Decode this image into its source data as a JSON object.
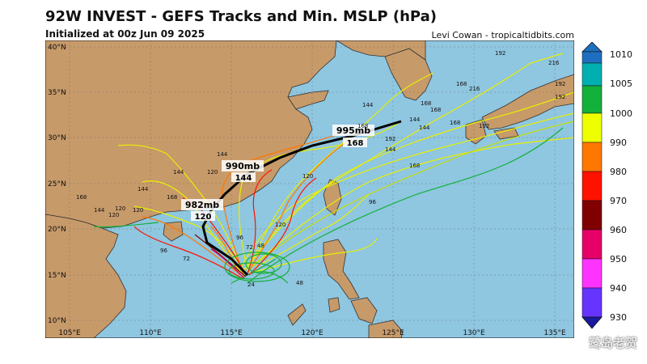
{
  "header": {
    "title": "92W INVEST - GEFS Tracks and Min. MSLP (hPa)",
    "subtitle_left": "Initialized at 00z Jun 09 2025",
    "credit": "Levi Cowan - tropicaltidbits.com"
  },
  "map": {
    "lon_range": [
      103.5,
      136
    ],
    "lat_range": [
      8.5,
      41
    ],
    "lon_ticks": [
      "105°E",
      "110°E",
      "115°E",
      "120°E",
      "125°E",
      "130°E",
      "135°E"
    ],
    "lat_ticks": [
      "10°N",
      "15°N",
      "20°N",
      "25°N",
      "30°N",
      "35°N",
      "40°N"
    ],
    "ocean_color": "#8fc6e0",
    "land_color": "#c79a6a"
  },
  "colorbar": {
    "label_unit": "hPa",
    "ticks": [
      "1010",
      "1005",
      "1000",
      "990",
      "980",
      "970",
      "960",
      "950",
      "940",
      "930"
    ],
    "colors": [
      "#1f6fc0",
      "#00b0b0",
      "#13b03a",
      "#eeff00",
      "#ff7700",
      "#ff1100",
      "#800000",
      "#e60068",
      "#ff33ff",
      "#6633ff"
    ]
  },
  "mean_track": {
    "labels": [
      "995mb",
      "168",
      "990mb",
      "144",
      "982mb",
      "120"
    ]
  },
  "hour_labels": [
    "192",
    "216",
    "192",
    "168",
    "216",
    "192",
    "144",
    "168",
    "168",
    "192",
    "168",
    "144",
    "144",
    "168",
    "192",
    "144",
    "168",
    "120",
    "144",
    "96",
    "120",
    "144",
    "120",
    "168",
    "144",
    "120",
    "96",
    "72",
    "48",
    "24",
    "96",
    "72",
    "48",
    "120",
    "144",
    "168",
    "120"
  ],
  "watermark": "鹭岛老贺"
}
